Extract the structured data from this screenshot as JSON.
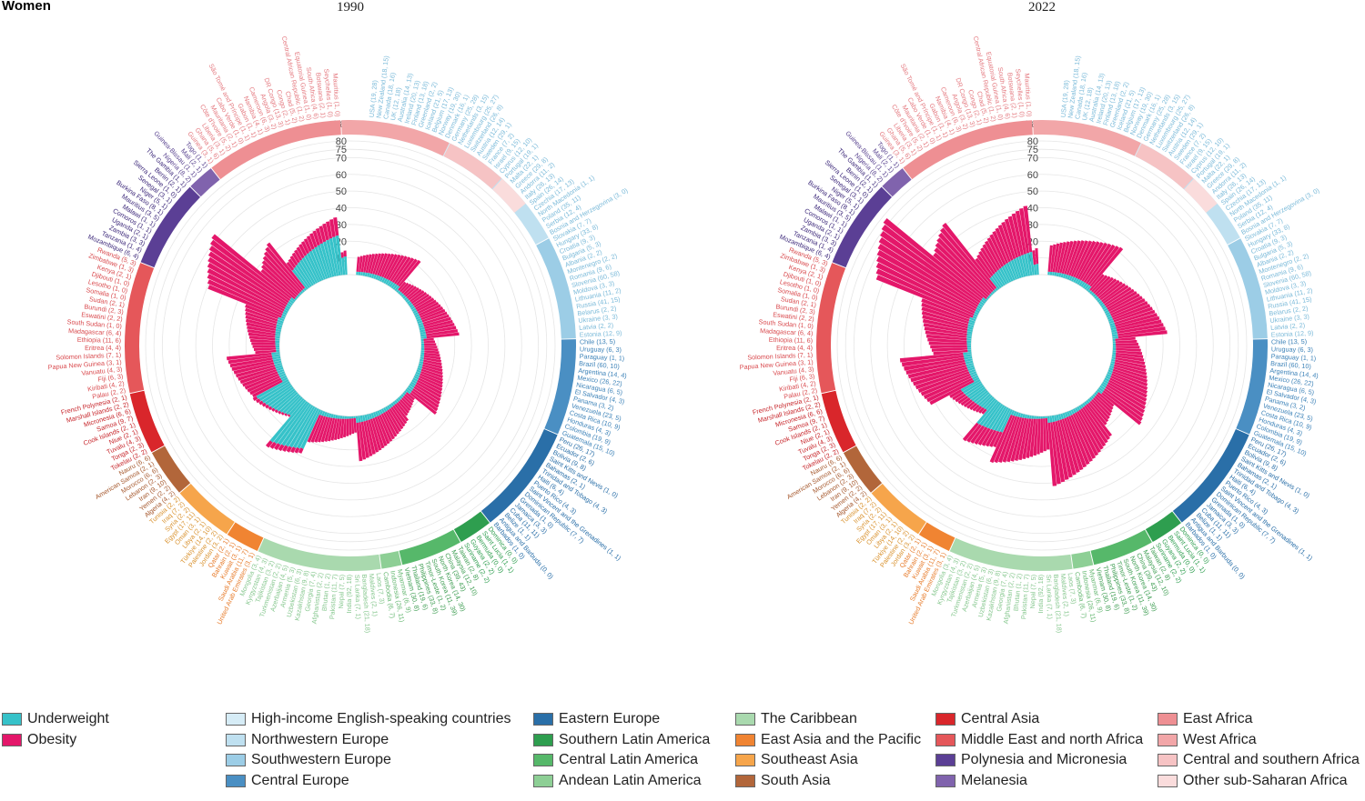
{
  "panel_label": "Women",
  "chart_data": [
    {
      "type": "bar",
      "title": "1990",
      "radial_axis": {
        "label": "(%)",
        "ticks": [
          10,
          20,
          30,
          40,
          50,
          60,
          70,
          75,
          80
        ],
        "range": [
          0,
          80
        ]
      },
      "region_order": [
        "High-income English-speaking countries",
        "Northwestern Europe",
        "Southwestern Europe",
        "Central Europe",
        "Eastern Europe",
        "Southern Latin America",
        "Central Latin America",
        "Andean Latin America",
        "The Caribbean",
        "East Asia and the Pacific",
        "Southeast Asia",
        "South Asia",
        "Central Asia",
        "Middle East and north Africa",
        "Polynesia and Micronesia",
        "Melanesia",
        "East Africa",
        "West Africa",
        "Central and southern Africa",
        "Other sub-Saharan Africa"
      ],
      "countries": [
        "USA (19, 28)",
        "New Zealand (18, 15)",
        "Canada (18, 16)",
        "UK (12, 18)",
        "Australia (14, 13)",
        "Ireland (20, 13)",
        "Finland (13, 18)",
        "Greenland (2, 2)",
        "Iceland (21, 5)",
        "Belgium (17, 13)",
        "Norway (19, 30)",
        "Denmark (16, 1)",
        "Germany (25, 28)",
        "Netherlands (3, 15)",
        "Luxembourg (25, 27)",
        "Switzerland (26, 8)",
        "Austria (12, 14)",
        "Sweden (29, 1)",
        "France (7, 2)",
        "Israel (9, 15)",
        "Cyprus (12, 10)",
        "Portugal (19, 1)",
        "Malta (22, 1)",
        "Greece (29, 8)",
        "Andorra (11, 2)",
        "Italy (26, 13)",
        "Spain (26, 14)",
        "Czechia (17, 13)",
        "North Macedonia (1, 1)",
        "Poland (35, 11)",
        "Serbia (12, 4)",
        "Bosnia and Herzegovina (3, 0)",
        "Slovakia (7, 7)",
        "Hungary (33, 8)",
        "Croatia (9, 3)",
        "Bulgaria (5, 3)",
        "Albania (2, 2)",
        "Montenegro (2, 2)",
        "Romania (9, 6)",
        "Slovenia (60, 58)",
        "Moldova (3, 3)",
        "Lithuania (11, 2)",
        "Russia (41, 15)",
        "Belarus (2, 2)",
        "Ukraine (3, 3)",
        "Latvia (2, 2)",
        "Estonia (12, 9)",
        "Chile (13, 5)",
        "Uruguay (6, 3)",
        "Paraguay (1, 1)",
        "Brazil (60, 10)",
        "Argentina (14, 4)",
        "Mexico (26, 22)",
        "Nicaragua (6, 5)",
        "El Salvador (4, 3)",
        "Panama (3, 2)",
        "Venezuela (23, 5)",
        "Costa Rica (10, 9)",
        "Honduras (4, 3)",
        "Colombia (19, 9)",
        "Guatemala (15, 10)",
        "Peru (26, 17)",
        "Ecuador (2, 6)",
        "Bolivia (9, 8)",
        "Saint Kitts and Nevis (1, 0)",
        "Bahamas (2, 1)",
        "Trinidad and Tobago (4, 3)",
        "Haiti (6, 4)",
        "Puerto Rico (4, 3)",
        "Saint Vincent and the Grenadines (1, 1)",
        "Dominican Republic (7, 7)",
        "Grenada (1, 0)",
        "Jamaica (3, 3)",
        "Cuba (11, 11)",
        "Belize (1, 1)",
        "Antigua and Barbuda (0, 0)",
        "Barbados (1, 0)",
        "Dominica (0, 0)",
        "Saint Lucia (1, 1)",
        "Bermuda (0, 0)",
        "Guyana (2, 2)",
        "Suriname (2, 2)",
        "Taiwan (2, 8)",
        "Malaysia (12, 10)",
        "China (39, 43)",
        "North Korea (14, 30)",
        "South Korea (11, 39)",
        "Timor-Leste (1, 2)",
        "Philippines (33, 8)",
        "Thailand (19, 6)",
        "Vietnam (30, 8)",
        "Myanmar (6, 9)",
        "Indonesia (26, 11)",
        "Cambodia (6, 7)",
        "Laos (7, 3)",
        "Maldives (2, 1)",
        "Bangladesh (21, 18)",
        "Sri Lanka (7, 1)",
        "India (92, 18)",
        "Nepal (7, 5)",
        "Pakistan (11, 7)",
        "Bhutan (1, 2)",
        "Afghanistan (2, 2)",
        "Georgia (7, 4)",
        "Kazakhstan (9, 8)",
        "Uzbekistan (6, 3)",
        "Armenia (5, 3)",
        "Azerbaijan (4, 5)",
        "Turkmenistan (2, 2)",
        "Tajikistan (3, 2)",
        "Kyrgyzstan (4, 3)",
        "Mongolia (3, 4)",
        "United Arab Emirates (3, 1)",
        "Saudi Arabia (11, 7)",
        "Kuwait (3, 1)",
        "Bahrain (2, 1)",
        "Qatar (2, 1)",
        "Jordan (3, 2)",
        "Palestine (2, 2)",
        "Türkiye (14, 10)",
        "Libya (2, 1)",
        "Oman (3, 1)",
        "Egypt (17, 11)",
        "Syria (2, 2)",
        "Iraq (7, 2)",
        "Tunisia (2, 2)",
        "Algeria (4, 2)",
        "Yemen (2, 2)",
        "Iran (9, 10)",
        "Lebanon (2, 3)",
        "Morocco (6, 6)",
        "American Samoa (2, 1)",
        "Nauru (6, 6)",
        "Tokelau (2, 2)",
        "Tonga (2, 3)",
        "Tuvalu (4, 3)",
        "Niue (2, 1)",
        "Cook Islands (2, 1)",
        "Samoa (9, 7)",
        "Micronesia (6, 6)",
        "Marshall Islands (2, 2)",
        "French Polynesia (2, 1)",
        "Palau (2, 2)",
        "Kiribati (4, 2)",
        "Fiji (6, 3)",
        "Vanuatu (4, 3)",
        "Papua New Guinea (3, 1)",
        "Solomon Islands (7, 1)",
        "Eritrea (4, 4)",
        "Ethiopia (11, 6)",
        "Madagascar (6, 4)",
        "South Sudan (1, 0)",
        "Eswatini (2, 2)",
        "Burundi (2, 3)",
        "Sudan (2, 1)",
        "Somalia (1, 0)",
        "Lesotho (1, 0)",
        "Djibouti (1, 0)",
        "Kenya (2, 1)",
        "Zimbabwe (1, 3)",
        "Rwanda (5, 3)",
        "Mozambique (6, 4)",
        "Tanzania (1, 4)",
        "Zambia (3, 3)",
        "Uganda (2, 1)",
        "Comoros (1, 1)",
        "Malawi (1, 1)",
        "Mauritius (3, 5)",
        "Burkina Faso (8, 1)",
        "Niger (5, 1)",
        "Senegal (3, 1)",
        "Sierra Leone (1, 0)",
        "Benin (2, 1)",
        "The Gambia (1, 1)",
        "Nigeria (8, 2)",
        "Guinea-Bissau (1, 1)",
        "Mali (2, 1)",
        "Togo (1, 1)",
        "Guinea (3, 1)",
        "Ghana (5, 6)",
        "Liberia (3, 1)",
        "Côte d'Ivoire (5, 2)",
        "Mauritania (2, 1)",
        "Cabo Verde (1, 0)",
        "São Tomé and Príncipe (1, 1)",
        "Gabon (1, 1)",
        "Namibia (4, 1)",
        "Cameroon (6, 3)",
        "Angola (3, 2)",
        "DR Congo (13, 3)",
        "Congo (2, 1)",
        "Chad (5, 2)",
        "Central African Republic (1, 2)",
        "Equatorial Guinea (1, 0)",
        "South Africa (4, 6)",
        "Botswana (2, 1)",
        "Seychelles (1, 0)",
        "Mauritius (1, 0)"
      ]
    },
    {
      "type": "bar",
      "title": "2022",
      "radial_axis": {
        "label": "(%)",
        "ticks": [
          10,
          20,
          30,
          40,
          50,
          60,
          70,
          75,
          80
        ],
        "range": [
          0,
          80
        ]
      }
    }
  ],
  "legend": {
    "measures": [
      {
        "label": "Underweight",
        "color": "#36c2c9"
      },
      {
        "label": "Obesity",
        "color": "#e4176a"
      }
    ],
    "regions": [
      {
        "label": "High-income English-speaking countries",
        "color": "#d6ecf6"
      },
      {
        "label": "Northwestern Europe",
        "color": "#bfe0f0"
      },
      {
        "label": "Southwestern Europe",
        "color": "#9ccde6"
      },
      {
        "label": "Central Europe",
        "color": "#4a8fc3"
      },
      {
        "label": "Eastern Europe",
        "color": "#2a6fa8"
      },
      {
        "label": "Southern Latin America",
        "color": "#2e9e4f"
      },
      {
        "label": "Central Latin America",
        "color": "#56b86a"
      },
      {
        "label": "Andean Latin America",
        "color": "#8dcf95"
      },
      {
        "label": "The Caribbean",
        "color": "#a9d9ae"
      },
      {
        "label": "East Asia and the Pacific",
        "color": "#f08432"
      },
      {
        "label": "Southeast Asia",
        "color": "#f6a54b"
      },
      {
        "label": "South Asia",
        "color": "#b2663a"
      },
      {
        "label": "Central Asia",
        "color": "#d9262b"
      },
      {
        "label": "Middle East and north Africa",
        "color": "#e5575a"
      },
      {
        "label": "Polynesia and Micronesia",
        "color": "#5b3f95"
      },
      {
        "label": "Melanesia",
        "color": "#8063ad"
      },
      {
        "label": "East Africa",
        "color": "#ee8f93"
      },
      {
        "label": "West Africa",
        "color": "#f2a6a8"
      },
      {
        "label": "Central and southern Africa",
        "color": "#f6c3c4"
      },
      {
        "label": "Other sub-Saharan Africa",
        "color": "#fadcdc"
      }
    ]
  }
}
